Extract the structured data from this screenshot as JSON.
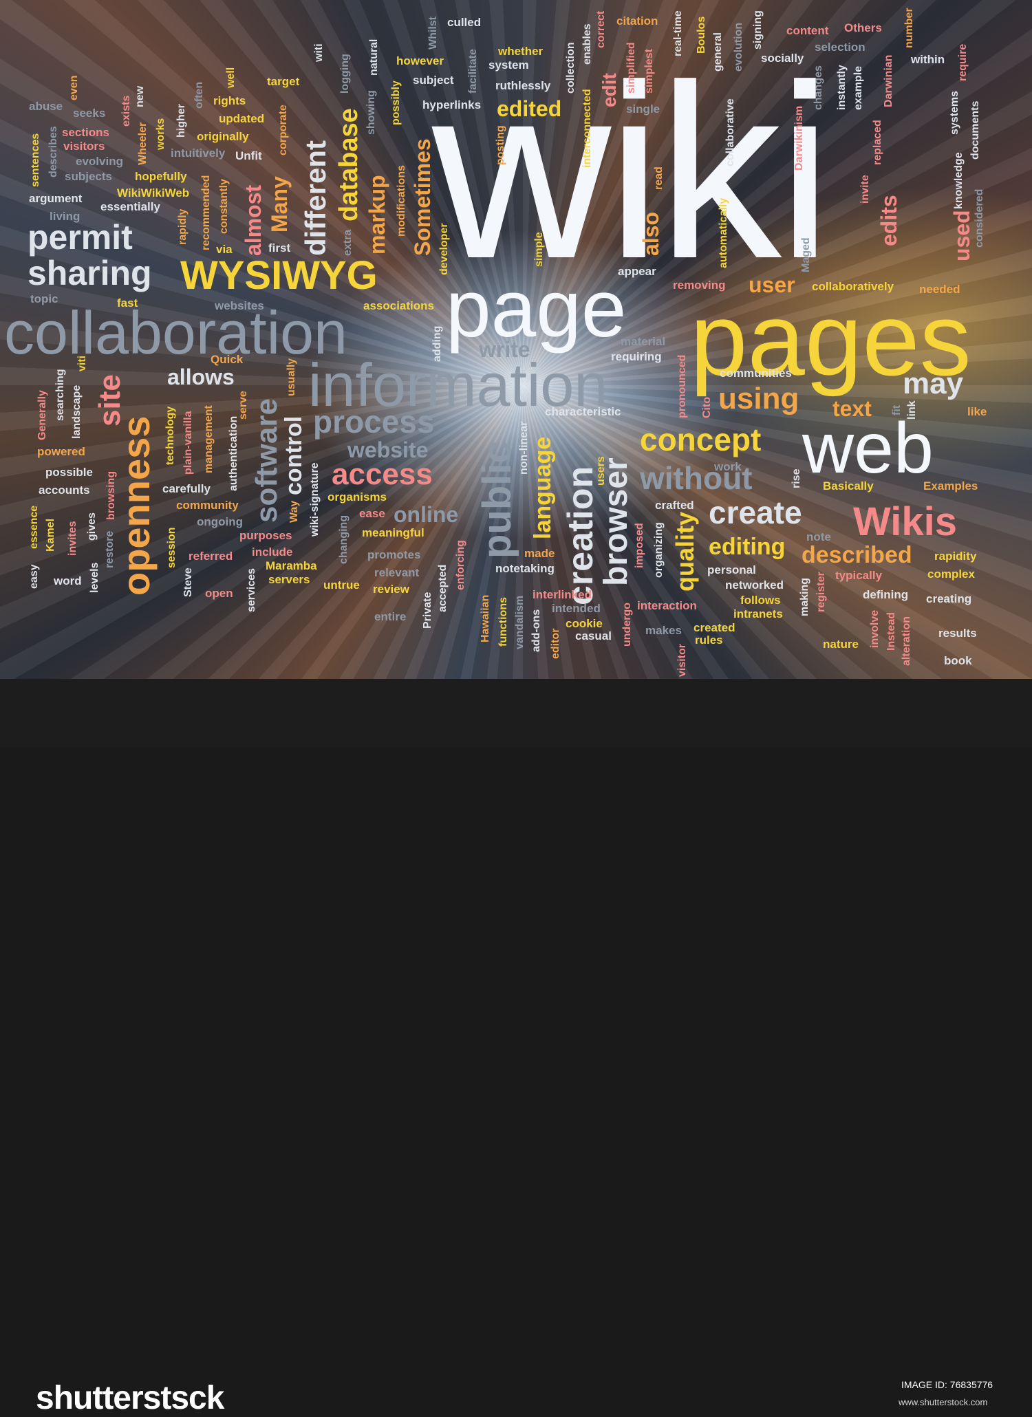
{
  "cloud_words": [
    {
      "t": "wiki",
      "c": "wh"
    },
    {
      "t": "pages",
      "c": "y"
    },
    {
      "t": "page",
      "c": "wh"
    },
    {
      "t": "information",
      "c": "s"
    },
    {
      "t": "collaboration",
      "c": "s"
    },
    {
      "t": "web",
      "c": "wh"
    },
    {
      "t": "WYSIWYG",
      "c": "y"
    },
    {
      "t": "sharing",
      "c": "g"
    },
    {
      "t": "permit",
      "c": "g"
    },
    {
      "t": "Wikis",
      "c": "p"
    },
    {
      "t": "create",
      "c": "g"
    },
    {
      "t": "concept",
      "c": "y"
    },
    {
      "t": "without",
      "c": "s"
    },
    {
      "t": "may",
      "c": "g"
    },
    {
      "t": "using",
      "c": "o"
    },
    {
      "t": "process",
      "c": "s"
    },
    {
      "t": "access",
      "c": "p"
    },
    {
      "t": "website",
      "c": "s"
    },
    {
      "t": "online",
      "c": "s"
    },
    {
      "t": "allows",
      "c": "g"
    },
    {
      "t": "described",
      "c": "o"
    },
    {
      "t": "editing",
      "c": "y"
    },
    {
      "t": "text",
      "c": "o"
    },
    {
      "t": "user",
      "c": "o"
    },
    {
      "t": "write",
      "c": "s"
    },
    {
      "t": "edited",
      "c": "y"
    },
    {
      "t": "openness",
      "c": "o"
    },
    {
      "t": "site",
      "c": "p"
    },
    {
      "t": "software",
      "c": "s"
    },
    {
      "t": "public",
      "c": "s"
    },
    {
      "t": "creation",
      "c": "g"
    },
    {
      "t": "browser",
      "c": "g"
    },
    {
      "t": "language",
      "c": "y"
    },
    {
      "t": "quality",
      "c": "y"
    },
    {
      "t": "control",
      "c": "g"
    },
    {
      "t": "different",
      "c": "g"
    },
    {
      "t": "database",
      "c": "y"
    },
    {
      "t": "markup",
      "c": "o"
    },
    {
      "t": "Sometimes",
      "c": "o"
    },
    {
      "t": "almost",
      "c": "p"
    },
    {
      "t": "Many",
      "c": "o"
    },
    {
      "t": "also",
      "c": "o"
    },
    {
      "t": "edits",
      "c": "p"
    },
    {
      "t": "used",
      "c": "p"
    },
    {
      "t": "edit",
      "c": "p"
    },
    {
      "t": "culled",
      "c": "g"
    },
    {
      "t": "citation",
      "c": "o"
    },
    {
      "t": "content",
      "c": "p"
    },
    {
      "t": "Others",
      "c": "p"
    },
    {
      "t": "whether",
      "c": "y"
    },
    {
      "t": "however",
      "c": "y"
    },
    {
      "t": "system",
      "c": "g"
    },
    {
      "t": "subject",
      "c": "g"
    },
    {
      "t": "ruthlessly",
      "c": "g"
    },
    {
      "t": "hyperlinks",
      "c": "g"
    },
    {
      "t": "target",
      "c": "y"
    },
    {
      "t": "rights",
      "c": "y"
    },
    {
      "t": "updated",
      "c": "y"
    },
    {
      "t": "originally",
      "c": "y"
    },
    {
      "t": "intuitively",
      "c": "s"
    },
    {
      "t": "Unfit",
      "c": "g"
    },
    {
      "t": "hopefully",
      "c": "y"
    },
    {
      "t": "WikiWikiWeb",
      "c": "y"
    },
    {
      "t": "essentially",
      "c": "g"
    },
    {
      "t": "abuse",
      "c": "s"
    },
    {
      "t": "seeks",
      "c": "s"
    },
    {
      "t": "sections",
      "c": "p"
    },
    {
      "t": "visitors",
      "c": "p"
    },
    {
      "t": "evolving",
      "c": "s"
    },
    {
      "t": "subjects",
      "c": "s"
    },
    {
      "t": "argument",
      "c": "g"
    },
    {
      "t": "living",
      "c": "s"
    },
    {
      "t": "topic",
      "c": "s"
    },
    {
      "t": "fast",
      "c": "y"
    },
    {
      "t": "websites",
      "c": "s"
    },
    {
      "t": "associations",
      "c": "y"
    },
    {
      "t": "first",
      "c": "g"
    },
    {
      "t": "via",
      "c": "y"
    },
    {
      "t": "appear",
      "c": "g"
    },
    {
      "t": "removing",
      "c": "p"
    },
    {
      "t": "collaboratively",
      "c": "y"
    },
    {
      "t": "needed",
      "c": "o"
    },
    {
      "t": "socially",
      "c": "g"
    },
    {
      "t": "selection",
      "c": "s"
    },
    {
      "t": "within",
      "c": "g"
    },
    {
      "t": "single",
      "c": "s"
    },
    {
      "t": "material",
      "c": "s"
    },
    {
      "t": "requiring",
      "c": "g"
    },
    {
      "t": "communities",
      "c": "g"
    },
    {
      "t": "characteristic",
      "c": "g"
    },
    {
      "t": "Quick",
      "c": "o"
    },
    {
      "t": "powered",
      "c": "o"
    },
    {
      "t": "possible",
      "c": "g"
    },
    {
      "t": "accounts",
      "c": "g"
    },
    {
      "t": "carefully",
      "c": "g"
    },
    {
      "t": "community",
      "c": "o"
    },
    {
      "t": "ongoing",
      "c": "s"
    },
    {
      "t": "purposes",
      "c": "p"
    },
    {
      "t": "include",
      "c": "p"
    },
    {
      "t": "referred",
      "c": "p"
    },
    {
      "t": "Maramba",
      "c": "y"
    },
    {
      "t": "servers",
      "c": "y"
    },
    {
      "t": "untrue",
      "c": "y"
    },
    {
      "t": "open",
      "c": "p"
    },
    {
      "t": "word",
      "c": "g"
    },
    {
      "t": "organisms",
      "c": "y"
    },
    {
      "t": "ease",
      "c": "p"
    },
    {
      "t": "meaningful",
      "c": "y"
    },
    {
      "t": "promotes",
      "c": "s"
    },
    {
      "t": "relevant",
      "c": "s"
    },
    {
      "t": "review",
      "c": "y"
    },
    {
      "t": "entire",
      "c": "s"
    },
    {
      "t": "made",
      "c": "o"
    },
    {
      "t": "notetaking",
      "c": "g"
    },
    {
      "t": "interlinked",
      "c": "p"
    },
    {
      "t": "intended",
      "c": "s"
    },
    {
      "t": "cookie",
      "c": "y"
    },
    {
      "t": "casual",
      "c": "g"
    },
    {
      "t": "interaction",
      "c": "p"
    },
    {
      "t": "makes",
      "c": "s"
    },
    {
      "t": "created",
      "c": "y"
    },
    {
      "t": "rules",
      "c": "y"
    },
    {
      "t": "work",
      "c": "s"
    },
    {
      "t": "crafted",
      "c": "g"
    },
    {
      "t": "note",
      "c": "s"
    },
    {
      "t": "personal",
      "c": "g"
    },
    {
      "t": "networked",
      "c": "g"
    },
    {
      "t": "follows",
      "c": "y"
    },
    {
      "t": "intranets",
      "c": "y"
    },
    {
      "t": "typically",
      "c": "p"
    },
    {
      "t": "defining",
      "c": "g"
    },
    {
      "t": "creating",
      "c": "g"
    },
    {
      "t": "rapidity",
      "c": "y"
    },
    {
      "t": "complex",
      "c": "y"
    },
    {
      "t": "Basically",
      "c": "y"
    },
    {
      "t": "Examples",
      "c": "o"
    },
    {
      "t": "like",
      "c": "o"
    },
    {
      "t": "nature",
      "c": "y"
    },
    {
      "t": "results",
      "c": "g"
    },
    {
      "t": "book",
      "c": "g"
    },
    {
      "t": "Whilst",
      "c": "s"
    },
    {
      "t": "natural",
      "c": "g"
    },
    {
      "t": "logging",
      "c": "s"
    },
    {
      "t": "witi",
      "c": "g"
    },
    {
      "t": "showing",
      "c": "s"
    },
    {
      "t": "possibly",
      "c": "y"
    },
    {
      "t": "facilitate",
      "c": "s"
    },
    {
      "t": "posting",
      "c": "o"
    },
    {
      "t": "collection",
      "c": "g"
    },
    {
      "t": "enables",
      "c": "g"
    },
    {
      "t": "correct",
      "c": "p"
    },
    {
      "t": "interconnected",
      "c": "y"
    },
    {
      "t": "simplified",
      "c": "p"
    },
    {
      "t": "simplest",
      "c": "p"
    },
    {
      "t": "real-time",
      "c": "g"
    },
    {
      "t": "Boulos",
      "c": "y"
    },
    {
      "t": "general",
      "c": "g"
    },
    {
      "t": "evolution",
      "c": "s"
    },
    {
      "t": "signing",
      "c": "g"
    },
    {
      "t": "number",
      "c": "o"
    },
    {
      "t": "collaborative",
      "c": "g"
    },
    {
      "t": "changes",
      "c": "s"
    },
    {
      "t": "instantly",
      "c": "g"
    },
    {
      "t": "example",
      "c": "g"
    },
    {
      "t": "Darwinian",
      "c": "p"
    },
    {
      "t": "Darwikinism",
      "c": "p"
    },
    {
      "t": "replaced",
      "c": "p"
    },
    {
      "t": "invite",
      "c": "p"
    },
    {
      "t": "systems",
      "c": "g"
    },
    {
      "t": "require",
      "c": "p"
    },
    {
      "t": "documents",
      "c": "g"
    },
    {
      "t": "knowledge",
      "c": "g"
    },
    {
      "t": "considered",
      "c": "s"
    },
    {
      "t": "Maged",
      "c": "s"
    },
    {
      "t": "automatically",
      "c": "y"
    },
    {
      "t": "read",
      "c": "o"
    },
    {
      "t": "simple",
      "c": "y"
    },
    {
      "t": "developer",
      "c": "y"
    },
    {
      "t": "modifications",
      "c": "o"
    },
    {
      "t": "extra",
      "c": "s"
    },
    {
      "t": "constantly",
      "c": "o"
    },
    {
      "t": "recommended",
      "c": "o"
    },
    {
      "t": "rapidly",
      "c": "o"
    },
    {
      "t": "higher",
      "c": "g"
    },
    {
      "t": "often",
      "c": "s"
    },
    {
      "t": "well",
      "c": "y"
    },
    {
      "t": "corporate",
      "c": "o"
    },
    {
      "t": "new",
      "c": "g"
    },
    {
      "t": "exists",
      "c": "p"
    },
    {
      "t": "even",
      "c": "o"
    },
    {
      "t": "describes",
      "c": "s"
    },
    {
      "t": "Wheeler",
      "c": "o"
    },
    {
      "t": "works",
      "c": "y"
    },
    {
      "t": "sentences",
      "c": "y"
    },
    {
      "t": "adding",
      "c": "g"
    },
    {
      "t": "usually",
      "c": "o"
    },
    {
      "t": "serve",
      "c": "o"
    },
    {
      "t": "management",
      "c": "o"
    },
    {
      "t": "technology",
      "c": "y"
    },
    {
      "t": "plain-vanilla",
      "c": "p"
    },
    {
      "t": "authentication",
      "c": "g"
    },
    {
      "t": "Way",
      "c": "o"
    },
    {
      "t": "wiki-signature",
      "c": "g"
    },
    {
      "t": "changing",
      "c": "s"
    },
    {
      "t": "accepted",
      "c": "g"
    },
    {
      "t": "enforcing",
      "c": "p"
    },
    {
      "t": "Private",
      "c": "g"
    },
    {
      "t": "Hawaiian",
      "c": "o"
    },
    {
      "t": "functions",
      "c": "y"
    },
    {
      "t": "vandalism",
      "c": "s"
    },
    {
      "t": "add-ons",
      "c": "g"
    },
    {
      "t": "editor",
      "c": "o"
    },
    {
      "t": "non-linear",
      "c": "g"
    },
    {
      "t": "users",
      "c": "y"
    },
    {
      "t": "undergo",
      "c": "p"
    },
    {
      "t": "visitor",
      "c": "p"
    },
    {
      "t": "imposed",
      "c": "p"
    },
    {
      "t": "organizing",
      "c": "g"
    },
    {
      "t": "pronounced",
      "c": "p"
    },
    {
      "t": "Cito",
      "c": "p"
    },
    {
      "t": "rise",
      "c": "g"
    },
    {
      "t": "fit",
      "c": "s"
    },
    {
      "t": "link",
      "c": "g"
    },
    {
      "t": "making",
      "c": "g"
    },
    {
      "t": "register",
      "c": "p"
    },
    {
      "t": "involve",
      "c": "p"
    },
    {
      "t": "Instead",
      "c": "p"
    },
    {
      "t": "alteration",
      "c": "p"
    },
    {
      "t": "viti",
      "c": "y"
    },
    {
      "t": "searching",
      "c": "g"
    },
    {
      "t": "landscape",
      "c": "g"
    },
    {
      "t": "Generally",
      "c": "p"
    },
    {
      "t": "easy",
      "c": "g"
    },
    {
      "t": "essence",
      "c": "y"
    },
    {
      "t": "Kamel",
      "c": "y"
    },
    {
      "t": "invites",
      "c": "p"
    },
    {
      "t": "gives",
      "c": "g"
    },
    {
      "t": "levels",
      "c": "g"
    },
    {
      "t": "restore",
      "c": "s"
    },
    {
      "t": "browsing",
      "c": "p"
    },
    {
      "t": "session",
      "c": "y"
    },
    {
      "t": "Steve",
      "c": "g"
    },
    {
      "t": "services",
      "c": "g"
    }
  ],
  "footer": {
    "logo": "shutterstsck",
    "image_id_label": "IMAGE ID:",
    "image_id": "76835776",
    "url": "www.shutterstock.com"
  }
}
